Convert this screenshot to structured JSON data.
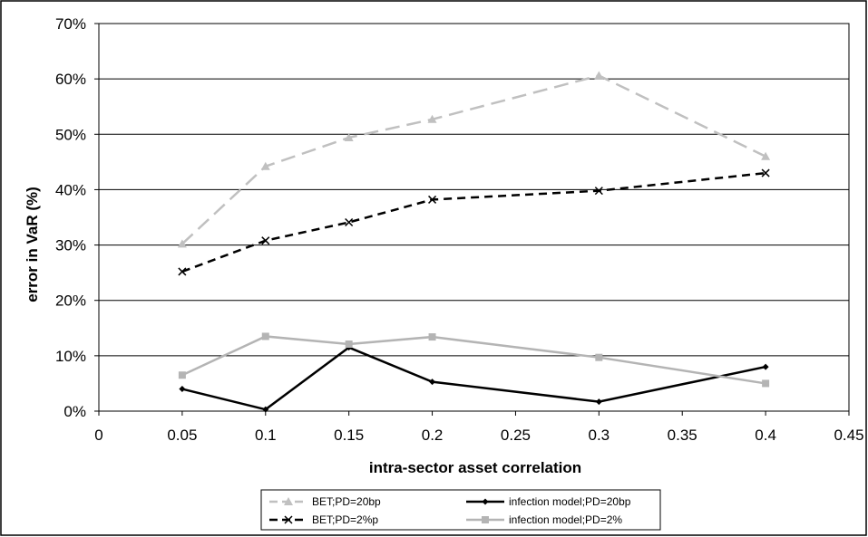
{
  "chart_data": {
    "type": "line",
    "xlabel": "intra-sector asset correlation",
    "ylabel": "error in VaR (%)",
    "xlim": [
      0,
      0.45
    ],
    "ylim": [
      0,
      70
    ],
    "x_ticks": [
      0,
      0.05,
      0.1,
      0.15,
      0.2,
      0.25,
      0.3,
      0.35,
      0.4,
      0.45
    ],
    "x_tick_labels": [
      "0",
      "0.05",
      "0.1",
      "0.15",
      "0.2",
      "0.25",
      "0.3",
      "0.35",
      "0.4",
      "0.45"
    ],
    "y_ticks": [
      0,
      10,
      20,
      30,
      40,
      50,
      60,
      70
    ],
    "y_tick_labels": [
      "0%",
      "10%",
      "20%",
      "30%",
      "40%",
      "50%",
      "60%",
      "70%"
    ],
    "grid": "horizontal",
    "legend_position": "bottom",
    "series": [
      {
        "name": "BET;PD=20bp",
        "color": "#c0c0c0",
        "line_style": "dashed",
        "marker": "triangle",
        "x": [
          0.05,
          0.1,
          0.15,
          0.2,
          0.3,
          0.4
        ],
        "values": [
          30.2,
          44.2,
          49.4,
          52.7,
          60.6,
          46.0
        ]
      },
      {
        "name": "BET;PD=2%p",
        "color": "#000000",
        "line_style": "dashed",
        "marker": "x",
        "x": [
          0.05,
          0.1,
          0.15,
          0.2,
          0.3,
          0.4
        ],
        "values": [
          25.2,
          30.8,
          34.1,
          38.2,
          39.8,
          43.0
        ]
      },
      {
        "name": "infection model;PD=20bp",
        "color": "#000000",
        "line_style": "solid",
        "marker": "diamond",
        "x": [
          0.05,
          0.1,
          0.15,
          0.2,
          0.3,
          0.4
        ],
        "values": [
          4.0,
          0.3,
          11.5,
          5.3,
          1.7,
          8.0
        ]
      },
      {
        "name": "infection model;PD=2%",
        "color": "#b4b4b4",
        "line_style": "solid",
        "marker": "square",
        "x": [
          0.05,
          0.1,
          0.15,
          0.2,
          0.3,
          0.4
        ],
        "values": [
          6.5,
          13.5,
          12.1,
          13.4,
          9.7,
          5.0
        ]
      }
    ]
  }
}
